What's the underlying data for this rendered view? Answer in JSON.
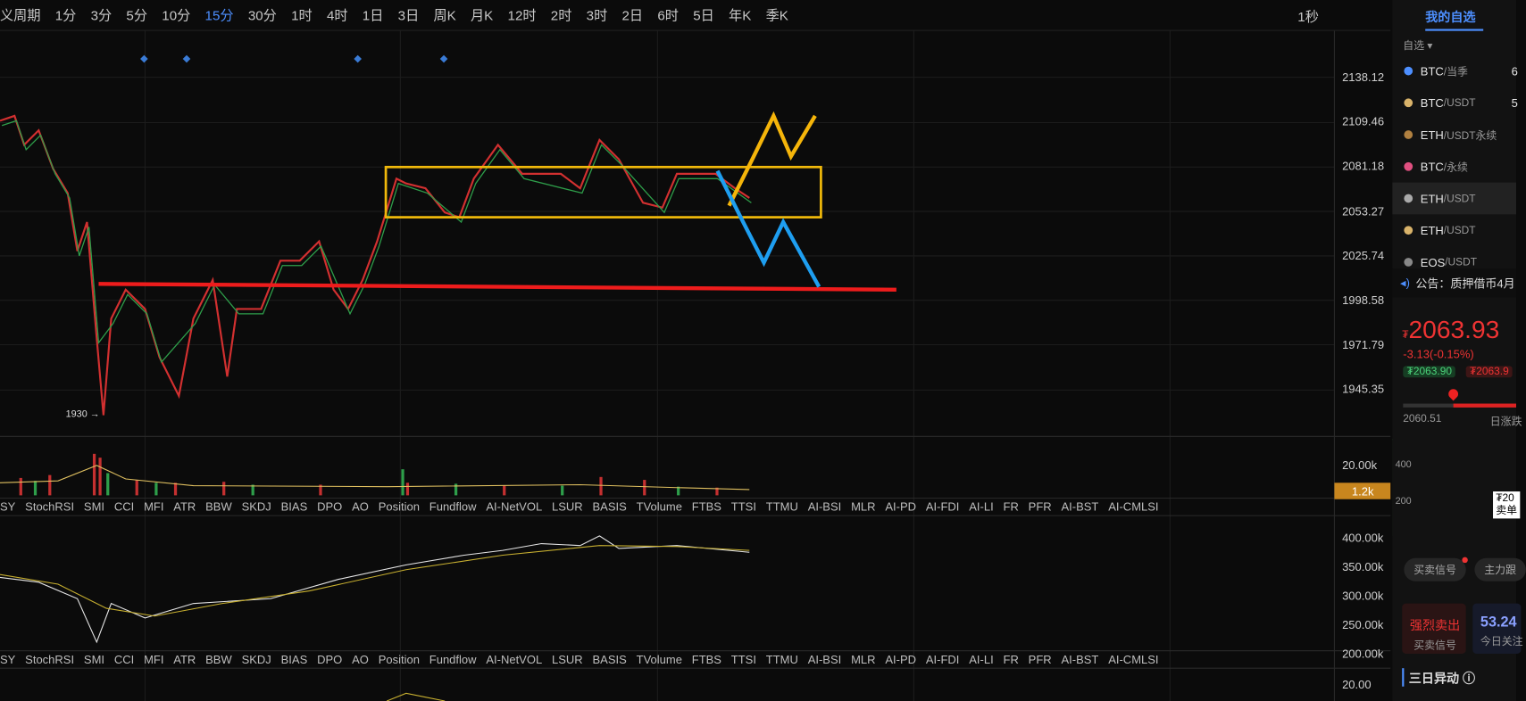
{
  "toolbar": {
    "period_menu": "义周期",
    "periods": [
      "1分",
      "3分",
      "5分",
      "10分",
      "15分",
      "30分",
      "1时",
      "4时",
      "1日",
      "3日",
      "周K",
      "月K",
      "12时",
      "2时",
      "3时",
      "2日",
      "6时",
      "5日",
      "年K",
      "季K"
    ],
    "active": "15分",
    "right": "1秒"
  },
  "price_axis": [
    "2138.12",
    "2109.46",
    "2081.18",
    "2053.27",
    "2025.74",
    "1998.58",
    "1971.79",
    "1945.35"
  ],
  "low_marker": "1930 →",
  "volume_axis": {
    "tick": "20.00k",
    "current": "1.2k"
  },
  "indicators": [
    "SY",
    "StochRSI",
    "SMI",
    "CCI",
    "MFI",
    "ATR",
    "BBW",
    "SKDJ",
    "BIAS",
    "DPO",
    "AO",
    "Position",
    "Fundflow",
    "AI-NetVOL",
    "LSUR",
    "BASIS",
    "TVolume",
    "FTBS",
    "TTSI",
    "TTMU",
    "AI-BSI",
    "MLR",
    "AI-PD",
    "AI-FDI",
    "AI-LI",
    "FR",
    "PFR",
    "AI-BST",
    "AI-CMLSI"
  ],
  "obv_axis": [
    "400.00k",
    "350.00k",
    "300.00k",
    "250.00k",
    "200.00k"
  ],
  "third_axis": "20.00",
  "sidebar": {
    "tab": "我的自选",
    "filter": "自选",
    "watchlist": [
      {
        "base": "BTC",
        "quote": "/当季",
        "value": "6"
      },
      {
        "base": "BTC",
        "quote": "/USDT",
        "value": "5"
      },
      {
        "base": "ETH",
        "quote": "/USDT永续"
      },
      {
        "base": "BTC",
        "quote": "/永续"
      },
      {
        "base": "ETH",
        "quote": "/USDT"
      },
      {
        "base": "ETH",
        "quote": "/USDT"
      },
      {
        "base": "EOS",
        "quote": "/USDT"
      }
    ],
    "notice": "公告：质押借币4月",
    "currency": "₮",
    "price": "2063.93",
    "change": "-3.13(-0.15%)",
    "bid": "₮2063.90",
    "ask": "₮2063.9",
    "low": "2060.51",
    "range_label": "日涨跌",
    "depth_ticks": [
      "400",
      "200"
    ],
    "tooltip": [
      "₮20",
      "卖单"
    ],
    "buttons": [
      "买卖信号",
      "主力跟"
    ],
    "signal": {
      "title": "强烈卖出",
      "sub": "买卖信号"
    },
    "score": {
      "value": "53.24",
      "sub": "今日关注"
    },
    "section": "三日异动 ⓘ"
  }
}
